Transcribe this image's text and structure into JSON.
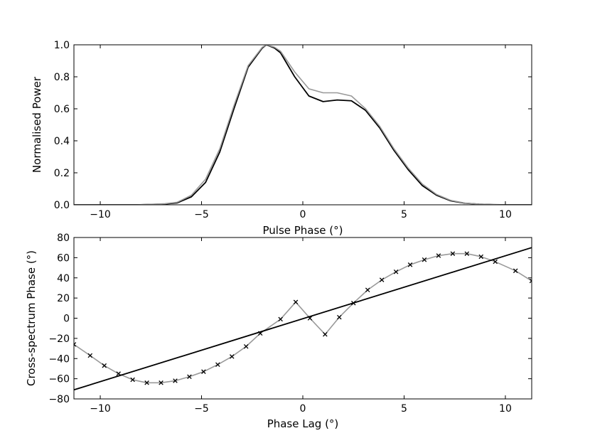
{
  "chart_data": [
    {
      "type": "line",
      "xlabel": "Pulse Phase (°)",
      "ylabel": "Normalised Power",
      "xlim": [
        -11.3,
        11.3
      ],
      "ylim": [
        0.0,
        1.0
      ],
      "xticks": [
        -10,
        -5,
        0,
        5,
        10
      ],
      "xtick_labels": [
        "−10",
        "−5",
        "0",
        "5",
        "10"
      ],
      "yticks": [
        0.0,
        0.2,
        0.4,
        0.6,
        0.8,
        1.0
      ],
      "ytick_labels": [
        "0.0",
        "0.2",
        "0.4",
        "0.6",
        "0.8",
        "1.0"
      ],
      "grid": false,
      "series": [
        {
          "color": "#000000",
          "x": [
            -11.3,
            -8.2,
            -7.5,
            -6.8,
            -6.2,
            -5.5,
            -4.8,
            -4.1,
            -3.4,
            -2.7,
            -2.0,
            -1.8,
            -1.4,
            -1.1,
            -0.4,
            0.3,
            1.0,
            1.7,
            2.4,
            3.1,
            3.8,
            4.5,
            5.2,
            5.9,
            6.6,
            7.3,
            8.0,
            8.7,
            9.4,
            10.1,
            11.3
          ],
          "y": [
            0.0,
            0.0,
            0.002,
            0.005,
            0.012,
            0.05,
            0.14,
            0.33,
            0.6,
            0.86,
            0.98,
            1.0,
            0.98,
            0.95,
            0.8,
            0.68,
            0.645,
            0.655,
            0.65,
            0.59,
            0.48,
            0.34,
            0.22,
            0.12,
            0.06,
            0.025,
            0.01,
            0.004,
            0.001,
            0.0,
            0.0
          ]
        },
        {
          "color": "#999999",
          "x": [
            -11.3,
            -8.2,
            -7.5,
            -6.8,
            -6.2,
            -5.5,
            -4.8,
            -4.1,
            -3.4,
            -2.7,
            -2.0,
            -1.8,
            -1.4,
            -1.1,
            -0.4,
            0.3,
            1.0,
            1.7,
            2.4,
            3.1,
            3.8,
            4.5,
            5.2,
            5.9,
            6.6,
            7.3,
            8.0,
            8.7,
            9.4,
            10.1,
            11.3
          ],
          "y": [
            0.0,
            0.0,
            0.003,
            0.007,
            0.016,
            0.06,
            0.16,
            0.35,
            0.62,
            0.87,
            0.985,
            1.0,
            0.985,
            0.96,
            0.83,
            0.725,
            0.7,
            0.7,
            0.68,
            0.6,
            0.49,
            0.35,
            0.23,
            0.13,
            0.065,
            0.028,
            0.011,
            0.004,
            0.001,
            0.0,
            0.0
          ]
        }
      ]
    },
    {
      "type": "line",
      "xlabel": "Phase Lag (°)",
      "ylabel": "Cross-spectrum Phase (°)",
      "xlim": [
        -11.3,
        11.3
      ],
      "ylim": [
        -80,
        80
      ],
      "xticks": [
        -10,
        -5,
        0,
        5,
        10
      ],
      "xtick_labels": [
        "−10",
        "−5",
        "0",
        "5",
        "10"
      ],
      "yticks": [
        -80,
        -60,
        -40,
        -20,
        0,
        20,
        40,
        60,
        80
      ],
      "ytick_labels": [
        "−80",
        "−60",
        "−40",
        "−20",
        "0",
        "20",
        "40",
        "60",
        "80"
      ],
      "grid": false,
      "series": [
        {
          "color": "#999999",
          "marker": "x",
          "marker_color": "#000000",
          "x": [
            -11.3,
            -10.5,
            -9.8,
            -9.1,
            -8.4,
            -7.7,
            -7.0,
            -6.3,
            -5.6,
            -4.9,
            -4.2,
            -3.5,
            -2.8,
            -2.1,
            -1.1,
            -0.35,
            0.35,
            1.1,
            1.8,
            2.5,
            3.2,
            3.9,
            4.6,
            5.3,
            6.0,
            6.7,
            7.4,
            8.1,
            8.8,
            9.5,
            10.5,
            11.3
          ],
          "y": [
            -26,
            -37,
            -47,
            -55,
            -61,
            -64,
            -64,
            -62,
            -58,
            -53,
            -46,
            -38,
            -28,
            -15,
            -1,
            16,
            0,
            -16,
            1,
            15,
            28,
            38,
            46,
            53,
            58,
            62,
            64,
            64,
            61,
            56,
            47,
            37
          ]
        },
        {
          "color": "#000000",
          "x": [
            -11.3,
            11.3
          ],
          "y": [
            -71,
            70
          ]
        }
      ]
    }
  ]
}
